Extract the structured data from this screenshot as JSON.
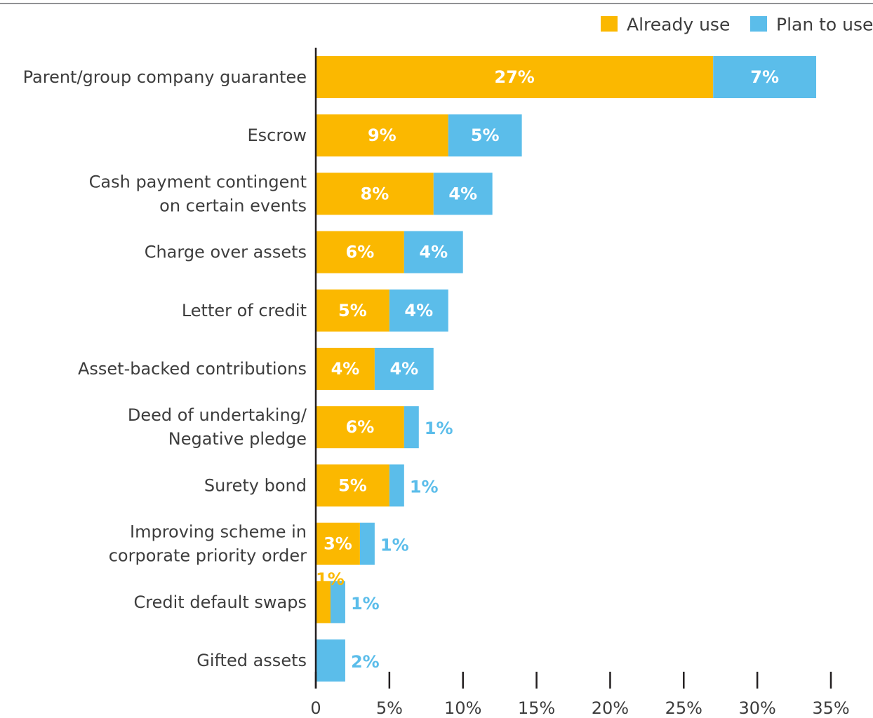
{
  "chart_data": {
    "type": "bar",
    "orientation": "horizontal",
    "stacked": true,
    "categories": [
      [
        "Parent/group company guarantee"
      ],
      [
        "Escrow"
      ],
      [
        "Cash payment contingent",
        "on certain events"
      ],
      [
        "Charge over assets"
      ],
      [
        "Letter of credit"
      ],
      [
        "Asset-backed contributions"
      ],
      [
        "Deed of undertaking/",
        "Negative pledge"
      ],
      [
        "Surety bond"
      ],
      [
        "Improving scheme in",
        "corporate priority order"
      ],
      [
        "Credit default swaps"
      ],
      [
        "Gifted assets"
      ]
    ],
    "series": [
      {
        "name": "Already use",
        "color": "#fbb800",
        "values": [
          27,
          9,
          8,
          6,
          5,
          4,
          6,
          5,
          3,
          1,
          0
        ],
        "labels": [
          "27%",
          "9%",
          "8%",
          "6%",
          "5%",
          "4%",
          "6%",
          "5%",
          "3%",
          "1%",
          ""
        ]
      },
      {
        "name": "Plan to use",
        "color": "#5bbdea",
        "values": [
          7,
          5,
          4,
          4,
          4,
          4,
          1,
          1,
          1,
          1,
          2
        ],
        "labels": [
          "7%",
          "5%",
          "4%",
          "4%",
          "4%",
          "4%",
          "1%",
          "1%",
          "1%",
          "1%",
          "2%"
        ]
      }
    ],
    "xlim": [
      0,
      35
    ],
    "xticks": [
      0,
      5,
      10,
      15,
      20,
      25,
      30,
      35
    ],
    "xtick_labels": [
      "0",
      "5%",
      "10%",
      "15%",
      "20%",
      "25%",
      "30%",
      "35%"
    ],
    "legend_position": "top-right",
    "grid": false,
    "title": "",
    "xlabel": "",
    "ylabel": ""
  }
}
